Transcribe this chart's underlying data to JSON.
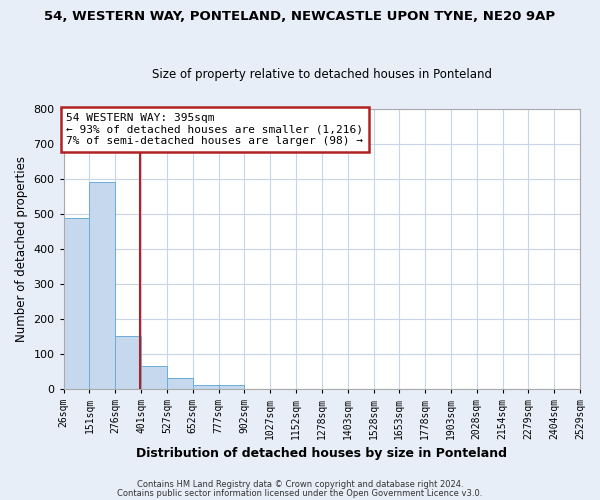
{
  "title1": "54, WESTERN WAY, PONTELAND, NEWCASTLE UPON TYNE, NE20 9AP",
  "title2": "Size of property relative to detached houses in Ponteland",
  "xlabel": "Distribution of detached houses by size in Ponteland",
  "ylabel": "Number of detached properties",
  "bar_heights": [
    486,
    590,
    150,
    63,
    29,
    10,
    10,
    0,
    0,
    0,
    0,
    0,
    0,
    0,
    0,
    0,
    0,
    0,
    0,
    0
  ],
  "bar_edges": [
    26,
    151,
    276,
    401,
    527,
    652,
    777,
    902,
    1027,
    1152,
    1278,
    1403,
    1528,
    1653,
    1778,
    1903,
    2028,
    2154,
    2279,
    2404,
    2529
  ],
  "bar_color": "#c5d8ed",
  "bar_edge_color": "#6aaed6",
  "ylim": [
    0,
    800
  ],
  "yticks": [
    0,
    100,
    200,
    300,
    400,
    500,
    600,
    700,
    800
  ],
  "property_size": 395,
  "vline_color": "#b22222",
  "annotation_text": "54 WESTERN WAY: 395sqm\n← 93% of detached houses are smaller (1,216)\n7% of semi-detached houses are larger (98) →",
  "annotation_box_color": "#b22222",
  "annotation_text_color": "#000000",
  "annotation_bg": "#ffffff",
  "grid_color": "#c8d4e8",
  "plot_bg_color": "#ffffff",
  "fig_bg_color": "#e8eef8",
  "footnote1": "Contains HM Land Registry data © Crown copyright and database right 2024.",
  "footnote2": "Contains public sector information licensed under the Open Government Licence v3.0."
}
